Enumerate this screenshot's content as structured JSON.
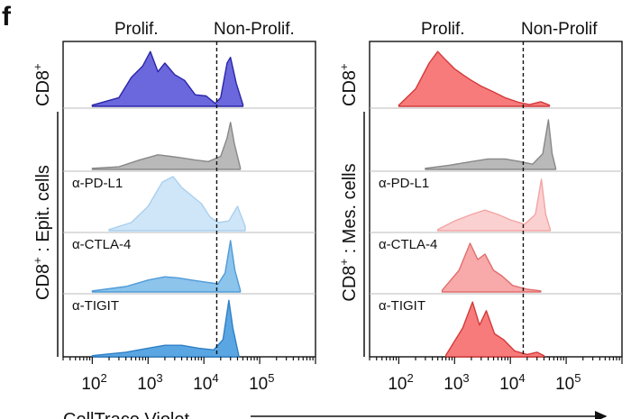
{
  "panel_label": "f",
  "header": {
    "prolif": "Prolif.",
    "nonprolif_left": "Non-Prolif.",
    "nonprolif_right": "Non-Prolif"
  },
  "row_labels": {
    "top": "CD8",
    "top_sup": "+",
    "left_group": "CD8",
    "left_group_sup": "+",
    "left_group_rest": " : Epit. cells",
    "right_group": "CD8",
    "right_group_sup": "+",
    "right_group_rest": " : Mes. cells"
  },
  "track_labels": [
    "α-PD-L1",
    "α-CTLA-4",
    "α-TIGIT"
  ],
  "x_axis": {
    "label": "CellTrace Violet",
    "ticks": [
      {
        "base": "10",
        "exp": "2"
      },
      {
        "base": "10",
        "exp": "3"
      },
      {
        "base": "10",
        "exp": "4"
      },
      {
        "base": "10",
        "exp": "5"
      }
    ]
  },
  "colors": {
    "blue_dark": "#6b67dc",
    "blue_stroke": "#2a26a8",
    "gray": "#b9b9b9",
    "light_blue": "#cfe6f8",
    "mid_blue": "#8cc4ec",
    "blue": "#5aa6e2",
    "red": "#f77b7b",
    "light_red": "#fbd0d0",
    "mid_red": "#f8a9a9"
  },
  "chart_data": {
    "type": "area",
    "x_scale": "log",
    "xlim": [
      30,
      1000000
    ],
    "xlabel": "CellTrace Violet",
    "gate_x": 17000,
    "panels": [
      {
        "name": "CD8+ : Epit. cells",
        "series": [
          {
            "track": "CD8+",
            "color": "#6b67dc",
            "stroke": "#2a26a8",
            "points": [
              [
                100,
                0.02
              ],
              [
                300,
                0.15
              ],
              [
                500,
                0.5
              ],
              [
                800,
                0.7
              ],
              [
                1100,
                0.95
              ],
              [
                1500,
                0.6
              ],
              [
                2000,
                0.75
              ],
              [
                3000,
                0.55
              ],
              [
                4500,
                0.45
              ],
              [
                7000,
                0.2
              ],
              [
                11000,
                0.18
              ],
              [
                16000,
                0.05
              ],
              [
                20000,
                0.15
              ],
              [
                26000,
                0.75
              ],
              [
                30000,
                0.85
              ],
              [
                38000,
                0.4
              ],
              [
                50000,
                0.03
              ]
            ]
          },
          {
            "track": "",
            "color": "#b9b9b9",
            "stroke": "#888888",
            "points": [
              [
                100,
                0.02
              ],
              [
                300,
                0.05
              ],
              [
                700,
                0.18
              ],
              [
                1500,
                0.28
              ],
              [
                2500,
                0.25
              ],
              [
                4000,
                0.22
              ],
              [
                7000,
                0.18
              ],
              [
                12000,
                0.15
              ],
              [
                20000,
                0.25
              ],
              [
                26000,
                0.6
              ],
              [
                30000,
                0.9
              ],
              [
                35000,
                0.5
              ],
              [
                45000,
                0.03
              ]
            ]
          },
          {
            "track": "α-PD-L1",
            "color": "#cfe6f8",
            "stroke": "#a9cfee",
            "points": [
              [
                200,
                0.02
              ],
              [
                500,
                0.15
              ],
              [
                1000,
                0.45
              ],
              [
                1800,
                0.9
              ],
              [
                2800,
                1.0
              ],
              [
                4000,
                0.8
              ],
              [
                6000,
                0.65
              ],
              [
                9000,
                0.5
              ],
              [
                13000,
                0.25
              ],
              [
                18000,
                0.15
              ],
              [
                28000,
                0.18
              ],
              [
                40000,
                0.45
              ],
              [
                55000,
                0.08
              ]
            ]
          },
          {
            "track": "α-CTLA-4",
            "color": "#8cc4ec",
            "stroke": "#4f9bd8",
            "points": [
              [
                100,
                0.02
              ],
              [
                400,
                0.1
              ],
              [
                1000,
                0.22
              ],
              [
                2000,
                0.28
              ],
              [
                3500,
                0.26
              ],
              [
                6000,
                0.22
              ],
              [
                11000,
                0.18
              ],
              [
                18000,
                0.15
              ],
              [
                24000,
                0.35
              ],
              [
                30000,
                0.95
              ],
              [
                36000,
                0.4
              ],
              [
                45000,
                0.03
              ]
            ]
          },
          {
            "track": "α-TIGIT",
            "color": "#5aa6e2",
            "stroke": "#2f7fc4",
            "points": [
              [
                100,
                0.02
              ],
              [
                400,
                0.08
              ],
              [
                1000,
                0.15
              ],
              [
                2000,
                0.2
              ],
              [
                4000,
                0.2
              ],
              [
                8000,
                0.15
              ],
              [
                15000,
                0.12
              ],
              [
                22000,
                0.3
              ],
              [
                28000,
                0.98
              ],
              [
                33000,
                0.5
              ],
              [
                42000,
                0.03
              ]
            ]
          }
        ]
      },
      {
        "name": "CD8+ : Mes. cells",
        "series": [
          {
            "track": "CD8+",
            "color": "#f77b7b",
            "stroke": "#d33a3a",
            "points": [
              [
                100,
                0.02
              ],
              [
                200,
                0.3
              ],
              [
                350,
                0.75
              ],
              [
                500,
                0.95
              ],
              [
                700,
                0.8
              ],
              [
                1000,
                0.65
              ],
              [
                1400,
                0.55
              ],
              [
                2000,
                0.45
              ],
              [
                3000,
                0.35
              ],
              [
                5000,
                0.25
              ],
              [
                8000,
                0.15
              ],
              [
                14000,
                0.07
              ],
              [
                22000,
                0.03
              ],
              [
                35000,
                0.08
              ],
              [
                50000,
                0.02
              ]
            ]
          },
          {
            "track": "",
            "color": "#b9b9b9",
            "stroke": "#888888",
            "points": [
              [
                300,
                0.02
              ],
              [
                800,
                0.08
              ],
              [
                2000,
                0.15
              ],
              [
                4000,
                0.2
              ],
              [
                8000,
                0.2
              ],
              [
                15000,
                0.15
              ],
              [
                25000,
                0.1
              ],
              [
                38000,
                0.3
              ],
              [
                48000,
                0.95
              ],
              [
                56000,
                0.3
              ],
              [
                65000,
                0.02
              ]
            ]
          },
          {
            "track": "α-PD-L1",
            "color": "#fbd0d0",
            "stroke": "#f3a5a5",
            "points": [
              [
                500,
                0.02
              ],
              [
                1000,
                0.18
              ],
              [
                2000,
                0.3
              ],
              [
                3500,
                0.38
              ],
              [
                6000,
                0.3
              ],
              [
                10000,
                0.2
              ],
              [
                18000,
                0.12
              ],
              [
                28000,
                0.3
              ],
              [
                36000,
                0.95
              ],
              [
                43000,
                0.3
              ],
              [
                52000,
                0.02
              ]
            ]
          },
          {
            "track": "α-CTLA-4",
            "color": "#f8a9a9",
            "stroke": "#e06e6e",
            "points": [
              [
                600,
                0.03
              ],
              [
                1200,
                0.4
              ],
              [
                1900,
                0.9
              ],
              [
                2600,
                0.6
              ],
              [
                3500,
                0.7
              ],
              [
                5000,
                0.4
              ],
              [
                7000,
                0.3
              ],
              [
                11000,
                0.12
              ],
              [
                20000,
                0.05
              ],
              [
                35000,
                0.02
              ]
            ]
          },
          {
            "track": "α-TIGIT",
            "color": "#f77b7b",
            "stroke": "#d33a3a",
            "points": [
              [
                700,
                0.03
              ],
              [
                1400,
                0.5
              ],
              [
                2100,
                0.95
              ],
              [
                2800,
                0.55
              ],
              [
                3700,
                0.8
              ],
              [
                5200,
                0.4
              ],
              [
                7500,
                0.3
              ],
              [
                12000,
                0.1
              ],
              [
                20000,
                0.04
              ],
              [
                30000,
                0.08
              ],
              [
                40000,
                0.02
              ]
            ]
          }
        ]
      }
    ]
  }
}
